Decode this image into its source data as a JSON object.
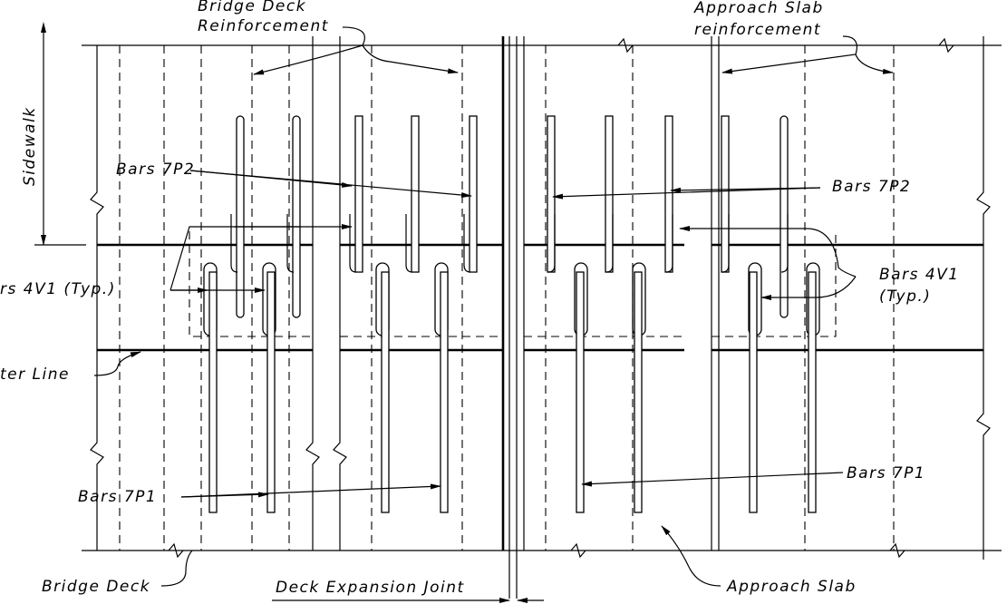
{
  "labels": {
    "bridge_deck_reinforcement_1": "Bridge Deck",
    "bridge_deck_reinforcement_2": "Reinforcement",
    "approach_slab_reinforcement_1": "Approach Slab",
    "approach_slab_reinforcement_2": "reinforcement",
    "sidewalk": "Sidewalk",
    "bars_7p2_left": "Bars 7P2",
    "bars_7p2_right": "Bars 7P2",
    "bars_4v1_left": "rs 4V1 (Typ.)",
    "bars_4v1_right_1": "Bars 4V1",
    "bars_4v1_right_2": "(Typ.)",
    "center_line": "ter Line",
    "bars_7p1_left": "Bars 7P1",
    "bars_7p1_right": "Bars 7P1",
    "bridge_deck": "Bridge Deck",
    "deck_expansion_joint": "Deck Expansion Joint",
    "approach_slab": "Approach Slab"
  }
}
